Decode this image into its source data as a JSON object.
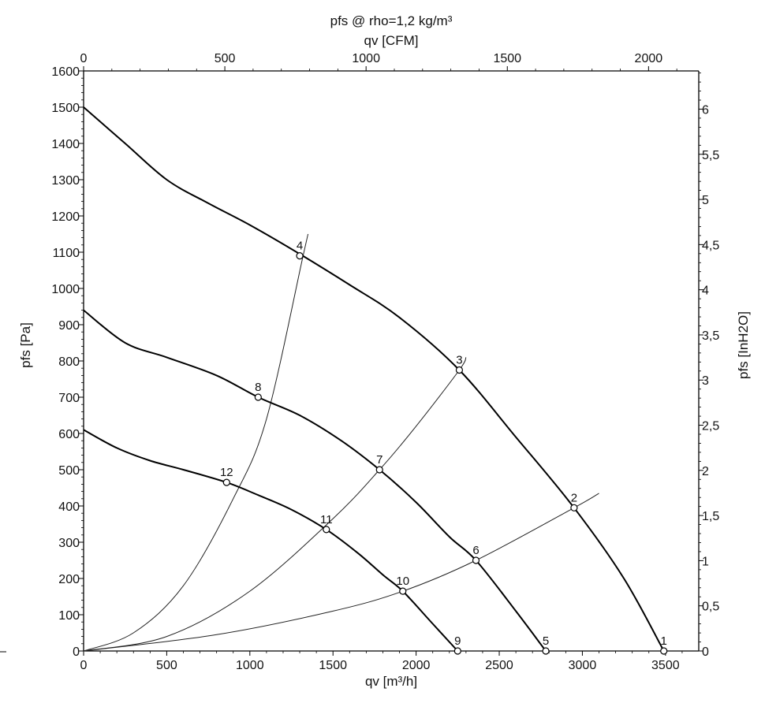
{
  "chart_data": {
    "type": "line",
    "title": "pfs @ rho=1,2 kg/m³",
    "x_top_label": "qv [CFM]",
    "xlabel": "qv [m³/h]",
    "ylabel": "pfs [Pa]",
    "y_right_label": "pfs [InH2O]",
    "xlim": [
      0,
      3700
    ],
    "ylim": [
      0,
      1600
    ],
    "x_top_lim_cfm": [
      0,
      2177.7
    ],
    "y_right_lim_inh2o": [
      0,
      6.423
    ],
    "x_ticks": [
      "0",
      "500",
      "1000",
      "1500",
      "2000",
      "2500",
      "3000",
      "3500"
    ],
    "x_top_ticks": [
      "0",
      "500",
      "1000",
      "1500",
      "2000"
    ],
    "y_ticks": [
      "0",
      "100",
      "200",
      "300",
      "400",
      "500",
      "600",
      "700",
      "800",
      "900",
      "1000",
      "1100",
      "1200",
      "1300",
      "1400",
      "1500",
      "1600"
    ],
    "y_right_ticks": [
      "0",
      "0,5",
      "1",
      "1,5",
      "2",
      "2,5",
      "3",
      "3,5",
      "4",
      "4,5",
      "5",
      "5,5",
      "6"
    ],
    "grid": false,
    "curves": [
      {
        "x": [
          0,
          250,
          500,
          750,
          1000,
          1300,
          1600,
          1900,
          2260,
          2600,
          2950,
          3250,
          3490
        ],
        "y": [
          1500,
          1400,
          1300,
          1235,
          1175,
          1095,
          1010,
          920,
          775,
          590,
          395,
          200,
          0
        ]
      },
      {
        "x": [
          0,
          250,
          500,
          800,
          1050,
          1300,
          1550,
          1780,
          2000,
          2200,
          2360,
          2600,
          2780
        ],
        "y": [
          940,
          850,
          810,
          760,
          700,
          650,
          580,
          500,
          410,
          315,
          250,
          110,
          0
        ]
      },
      {
        "x": [
          0,
          200,
          400,
          600,
          860,
          1050,
          1250,
          1460,
          1650,
          1800,
          1920,
          2100,
          2250
        ],
        "y": [
          610,
          560,
          525,
          500,
          465,
          430,
          390,
          335,
          270,
          210,
          165,
          75,
          0
        ]
      }
    ],
    "system_curves": [
      {
        "x": [
          0,
          300,
          600,
          900,
          1100,
          1320,
          1350
        ],
        "y": [
          0,
          50,
          180,
          420,
          640,
          1090,
          1150
        ]
      },
      {
        "x": [
          0,
          500,
          1000,
          1500,
          1780,
          2000,
          2260,
          2300
        ],
        "y": [
          0,
          40,
          165,
          365,
          500,
          620,
          775,
          810
        ]
      },
      {
        "x": [
          0,
          800,
          1500,
          1920,
          2360,
          2950,
          3100
        ],
        "y": [
          0,
          45,
          110,
          165,
          250,
          395,
          435
        ]
      }
    ],
    "points": [
      {
        "label": "1",
        "x": 3490,
        "y": 0
      },
      {
        "label": "2",
        "x": 2950,
        "y": 395
      },
      {
        "label": "3",
        "x": 2260,
        "y": 775
      },
      {
        "label": "4",
        "x": 1300,
        "y": 1090
      },
      {
        "label": "5",
        "x": 2780,
        "y": 0
      },
      {
        "label": "6",
        "x": 2360,
        "y": 250
      },
      {
        "label": "7",
        "x": 1780,
        "y": 500
      },
      {
        "label": "8",
        "x": 1050,
        "y": 700
      },
      {
        "label": "9",
        "x": 2250,
        "y": 0
      },
      {
        "label": "10",
        "x": 1920,
        "y": 165
      },
      {
        "label": "11",
        "x": 1460,
        "y": 335
      },
      {
        "label": "12",
        "x": 860,
        "y": 465
      }
    ]
  }
}
